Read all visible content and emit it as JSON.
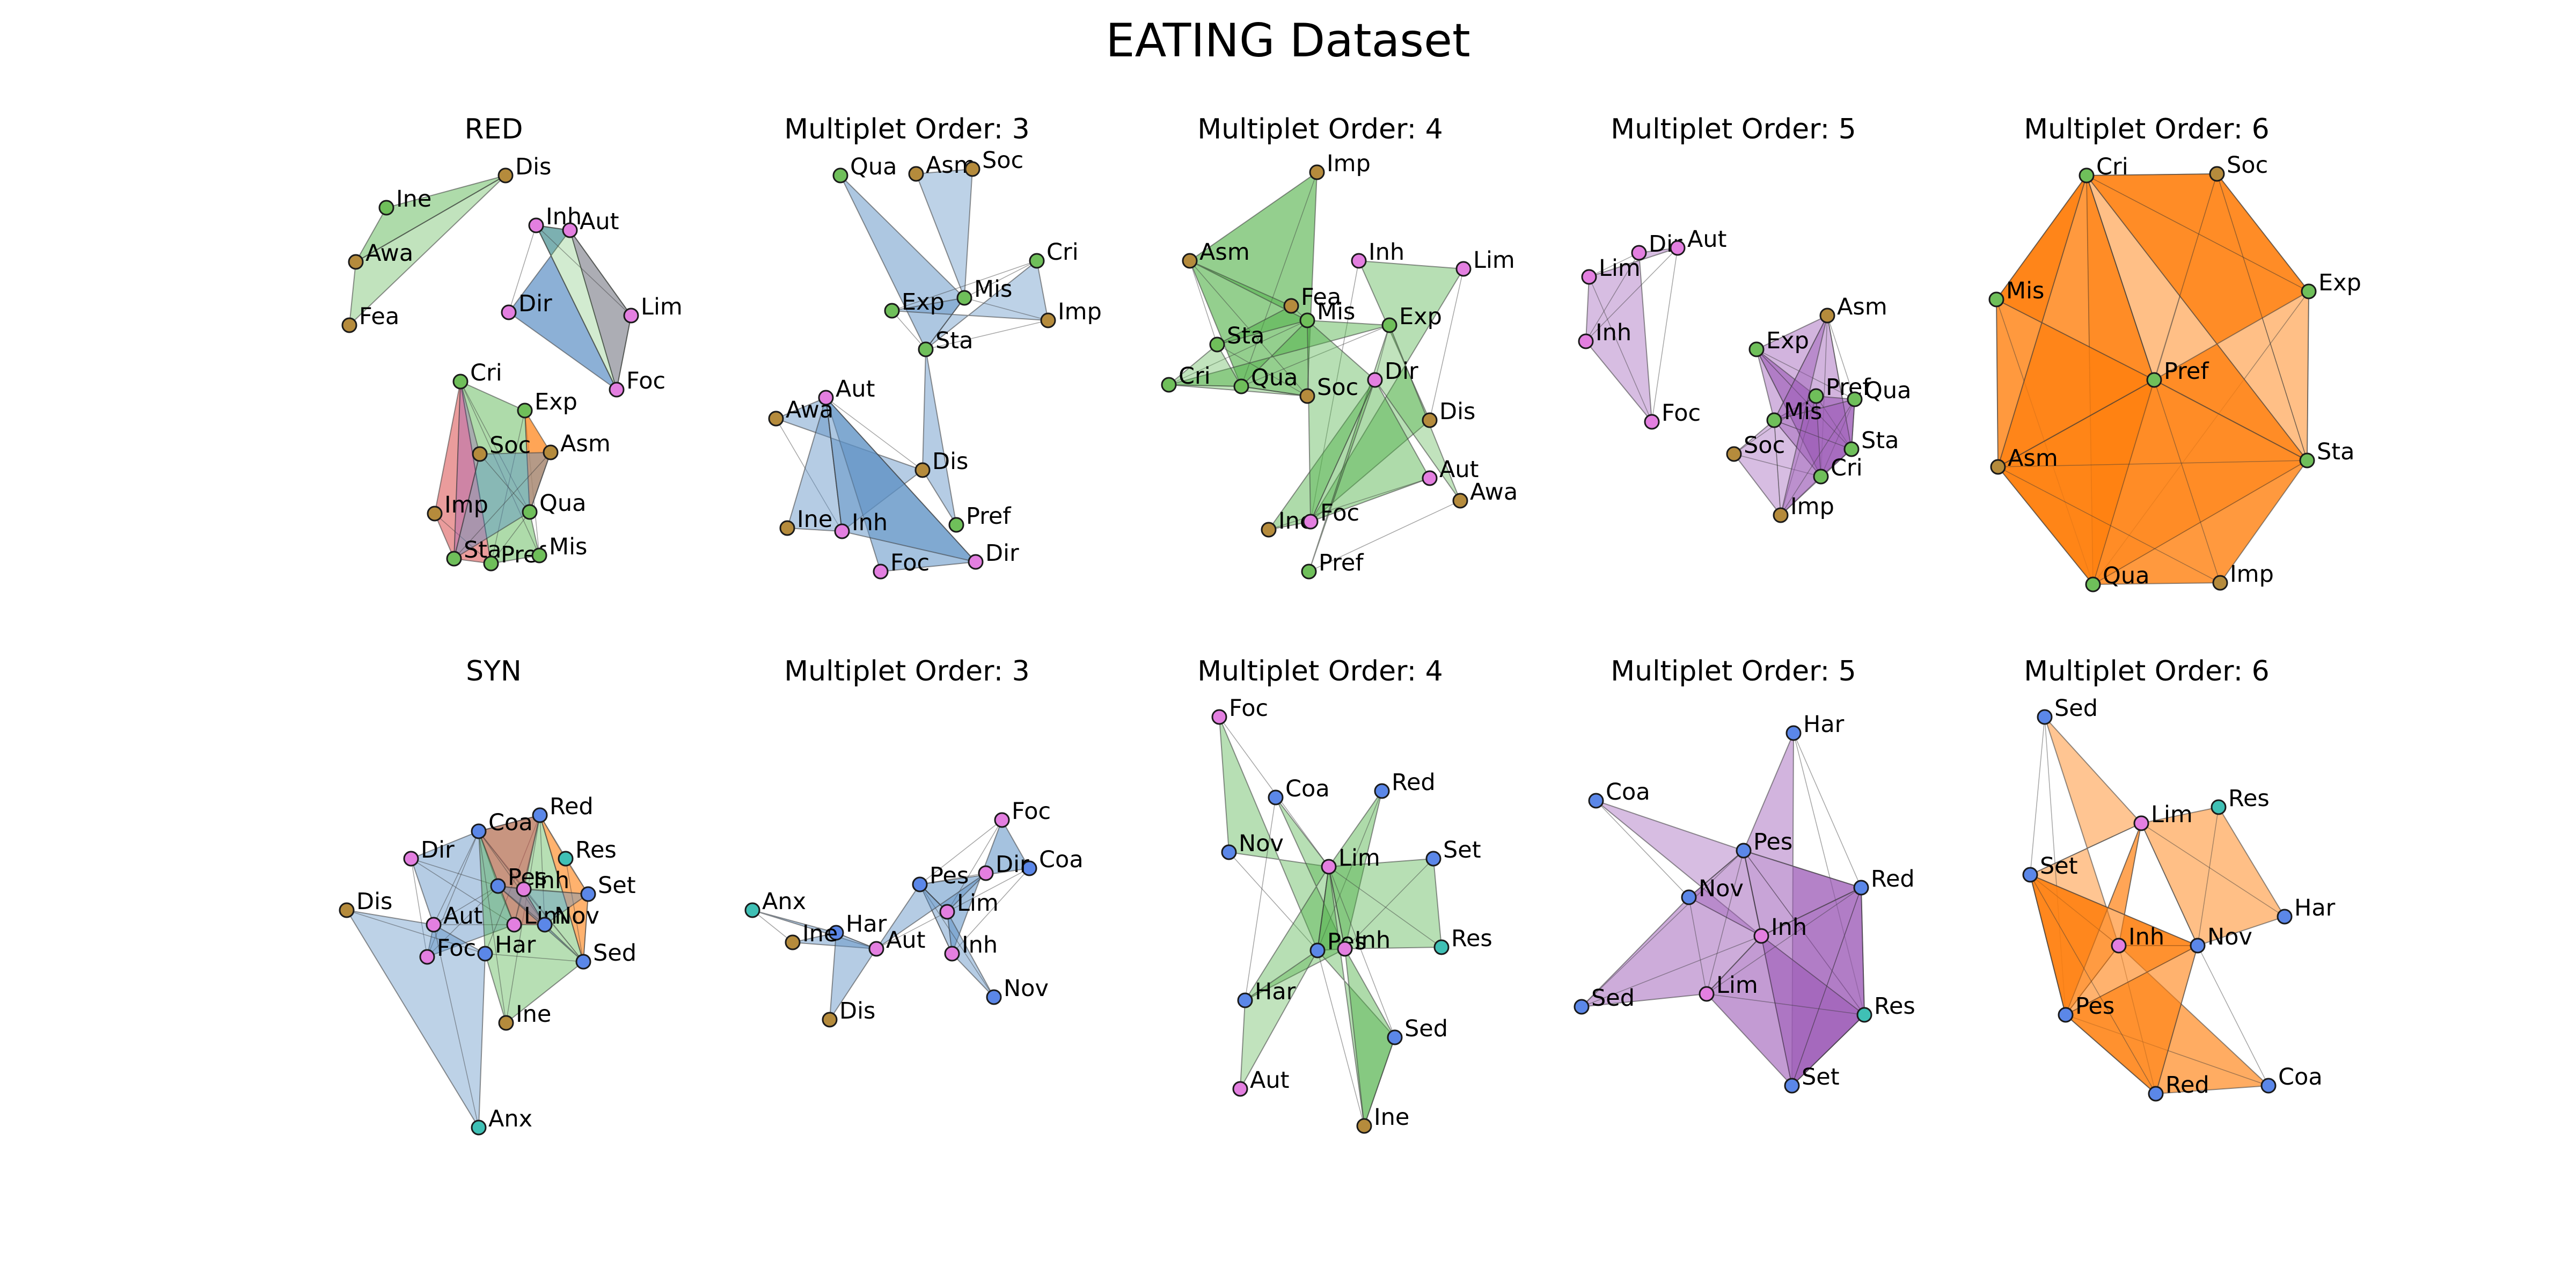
{
  "figure": {
    "title": "EATING Dataset"
  },
  "colors": {
    "order3": "#5b8fc4",
    "order4": "#4caf43",
    "order5": "#9b59b6",
    "order6": "#ff7f0e",
    "red_extra": "#d94b4b",
    "node_tan": "#b58b3c",
    "node_green": "#6fbf5a",
    "node_pink": "#e37fe0",
    "node_blue": "#5b87e8",
    "node_teal": "#3fc0b5"
  },
  "panels": [
    {
      "title": "RED",
      "nodes": [
        {
          "label": "Dis",
          "color": "node_tan"
        },
        {
          "label": "Ine",
          "color": "node_green"
        },
        {
          "label": "Awa",
          "color": "node_tan"
        },
        {
          "label": "Fea",
          "color": "node_tan"
        },
        {
          "label": "Inh",
          "color": "node_pink"
        },
        {
          "label": "Aut",
          "color": "node_pink"
        },
        {
          "label": "Dir",
          "color": "node_pink"
        },
        {
          "label": "Lim",
          "color": "node_pink"
        },
        {
          "label": "Foc",
          "color": "node_pink"
        },
        {
          "label": "Cri",
          "color": "node_green"
        },
        {
          "label": "Exp",
          "color": "node_green"
        },
        {
          "label": "Soc",
          "color": "node_tan"
        },
        {
          "label": "Asm",
          "color": "node_tan"
        },
        {
          "label": "Imp",
          "color": "node_tan"
        },
        {
          "label": "Qua",
          "color": "node_green"
        },
        {
          "label": "Sta",
          "color": "node_green"
        },
        {
          "label": "Pref",
          "color": "node_green"
        },
        {
          "label": "Mis",
          "color": "node_green"
        }
      ]
    },
    {
      "title": "Multiplet Order: 3",
      "nodes": [
        {
          "label": "Qua",
          "color": "node_green"
        },
        {
          "label": "Asm",
          "color": "node_tan"
        },
        {
          "label": "Soc",
          "color": "node_tan"
        },
        {
          "label": "Cri",
          "color": "node_green"
        },
        {
          "label": "Exp",
          "color": "node_green"
        },
        {
          "label": "Mis",
          "color": "node_green"
        },
        {
          "label": "Imp",
          "color": "node_tan"
        },
        {
          "label": "Sta",
          "color": "node_green"
        },
        {
          "label": "Aut",
          "color": "node_pink"
        },
        {
          "label": "Awa",
          "color": "node_tan"
        },
        {
          "label": "Dis",
          "color": "node_tan"
        },
        {
          "label": "Pref",
          "color": "node_green"
        },
        {
          "label": "Ine",
          "color": "node_tan"
        },
        {
          "label": "Inh",
          "color": "node_pink"
        },
        {
          "label": "Dir",
          "color": "node_pink"
        },
        {
          "label": "Foc",
          "color": "node_pink"
        }
      ]
    },
    {
      "title": "Multiplet Order: 4",
      "nodes": [
        {
          "label": "Imp",
          "color": "node_tan"
        },
        {
          "label": "Asm",
          "color": "node_tan"
        },
        {
          "label": "Inh",
          "color": "node_pink"
        },
        {
          "label": "Lim",
          "color": "node_pink"
        },
        {
          "label": "Fea",
          "color": "node_tan"
        },
        {
          "label": "Mis",
          "color": "node_green"
        },
        {
          "label": "Exp",
          "color": "node_green"
        },
        {
          "label": "Sta",
          "color": "node_green"
        },
        {
          "label": "Dir",
          "color": "node_pink"
        },
        {
          "label": "Cri",
          "color": "node_green"
        },
        {
          "label": "Qua",
          "color": "node_green"
        },
        {
          "label": "Soc",
          "color": "node_tan"
        },
        {
          "label": "Dis",
          "color": "node_tan"
        },
        {
          "label": "Aut",
          "color": "node_pink"
        },
        {
          "label": "Awa",
          "color": "node_tan"
        },
        {
          "label": "Ine",
          "color": "node_tan"
        },
        {
          "label": "Foc",
          "color": "node_pink"
        },
        {
          "label": "Pref",
          "color": "node_green"
        }
      ]
    },
    {
      "title": "Multiplet Order: 5",
      "nodes": [
        {
          "label": "Dir",
          "color": "node_pink"
        },
        {
          "label": "Aut",
          "color": "node_pink"
        },
        {
          "label": "Lim",
          "color": "node_pink"
        },
        {
          "label": "Inh",
          "color": "node_pink"
        },
        {
          "label": "Foc",
          "color": "node_pink"
        },
        {
          "label": "Asm",
          "color": "node_tan"
        },
        {
          "label": "Exp",
          "color": "node_green"
        },
        {
          "label": "Pref",
          "color": "node_green"
        },
        {
          "label": "Qua",
          "color": "node_green"
        },
        {
          "label": "Mis",
          "color": "node_green"
        },
        {
          "label": "Soc",
          "color": "node_tan"
        },
        {
          "label": "Sta",
          "color": "node_green"
        },
        {
          "label": "Cri",
          "color": "node_green"
        },
        {
          "label": "Imp",
          "color": "node_tan"
        }
      ]
    },
    {
      "title": "Multiplet Order: 6",
      "nodes": [
        {
          "label": "Cri",
          "color": "node_green"
        },
        {
          "label": "Soc",
          "color": "node_tan"
        },
        {
          "label": "Mis",
          "color": "node_green"
        },
        {
          "label": "Exp",
          "color": "node_green"
        },
        {
          "label": "Pref",
          "color": "node_green"
        },
        {
          "label": "Asm",
          "color": "node_tan"
        },
        {
          "label": "Sta",
          "color": "node_green"
        },
        {
          "label": "Qua",
          "color": "node_green"
        },
        {
          "label": "Imp",
          "color": "node_tan"
        }
      ]
    },
    {
      "title": "SYN",
      "nodes": [
        {
          "label": "Coa",
          "color": "node_blue"
        },
        {
          "label": "Red",
          "color": "node_blue"
        },
        {
          "label": "Dir",
          "color": "node_pink"
        },
        {
          "label": "Res",
          "color": "node_teal"
        },
        {
          "label": "Pes",
          "color": "node_blue"
        },
        {
          "label": "Inh",
          "color": "node_pink"
        },
        {
          "label": "Set",
          "color": "node_blue"
        },
        {
          "label": "Dis",
          "color": "node_tan"
        },
        {
          "label": "Aut",
          "color": "node_pink"
        },
        {
          "label": "Lim",
          "color": "node_pink"
        },
        {
          "label": "Nov",
          "color": "node_blue"
        },
        {
          "label": "Foc",
          "color": "node_pink"
        },
        {
          "label": "Har",
          "color": "node_blue"
        },
        {
          "label": "Sed",
          "color": "node_blue"
        },
        {
          "label": "Ine",
          "color": "node_tan"
        },
        {
          "label": "Anx",
          "color": "node_teal"
        }
      ]
    },
    {
      "title": "Multiplet Order: 3",
      "nodes": [
        {
          "label": "Foc",
          "color": "node_pink"
        },
        {
          "label": "Coa",
          "color": "node_blue"
        },
        {
          "label": "Dir",
          "color": "node_pink"
        },
        {
          "label": "Pes",
          "color": "node_blue"
        },
        {
          "label": "Lim",
          "color": "node_pink"
        },
        {
          "label": "Anx",
          "color": "node_teal"
        },
        {
          "label": "Har",
          "color": "node_blue"
        },
        {
          "label": "Ine",
          "color": "node_tan"
        },
        {
          "label": "Aut",
          "color": "node_pink"
        },
        {
          "label": "Inh",
          "color": "node_pink"
        },
        {
          "label": "Nov",
          "color": "node_blue"
        },
        {
          "label": "Dis",
          "color": "node_tan"
        }
      ]
    },
    {
      "title": "Multiplet Order: 4",
      "nodes": [
        {
          "label": "Foc",
          "color": "node_pink"
        },
        {
          "label": "Coa",
          "color": "node_blue"
        },
        {
          "label": "Red",
          "color": "node_blue"
        },
        {
          "label": "Nov",
          "color": "node_blue"
        },
        {
          "label": "Lim",
          "color": "node_pink"
        },
        {
          "label": "Set",
          "color": "node_blue"
        },
        {
          "label": "Res",
          "color": "node_teal"
        },
        {
          "label": "Pes",
          "color": "node_blue"
        },
        {
          "label": "Inh",
          "color": "node_pink"
        },
        {
          "label": "Har",
          "color": "node_blue"
        },
        {
          "label": "Sed",
          "color": "node_blue"
        },
        {
          "label": "Aut",
          "color": "node_pink"
        },
        {
          "label": "Ine",
          "color": "node_tan"
        }
      ]
    },
    {
      "title": "Multiplet Order: 5",
      "nodes": [
        {
          "label": "Har",
          "color": "node_blue"
        },
        {
          "label": "Coa",
          "color": "node_blue"
        },
        {
          "label": "Pes",
          "color": "node_blue"
        },
        {
          "label": "Red",
          "color": "node_blue"
        },
        {
          "label": "Nov",
          "color": "node_blue"
        },
        {
          "label": "Inh",
          "color": "node_pink"
        },
        {
          "label": "Sed",
          "color": "node_blue"
        },
        {
          "label": "Lim",
          "color": "node_pink"
        },
        {
          "label": "Res",
          "color": "node_teal"
        },
        {
          "label": "Set",
          "color": "node_blue"
        }
      ]
    },
    {
      "title": "Multiplet Order: 6",
      "nodes": [
        {
          "label": "Sed",
          "color": "node_blue"
        },
        {
          "label": "Lim",
          "color": "node_pink"
        },
        {
          "label": "Res",
          "color": "node_teal"
        },
        {
          "label": "Set",
          "color": "node_blue"
        },
        {
          "label": "Har",
          "color": "node_blue"
        },
        {
          "label": "Inh",
          "color": "node_pink"
        },
        {
          "label": "Nov",
          "color": "node_blue"
        },
        {
          "label": "Pes",
          "color": "node_blue"
        },
        {
          "label": "Red",
          "color": "node_blue"
        },
        {
          "label": "Coa",
          "color": "node_blue"
        }
      ]
    }
  ]
}
